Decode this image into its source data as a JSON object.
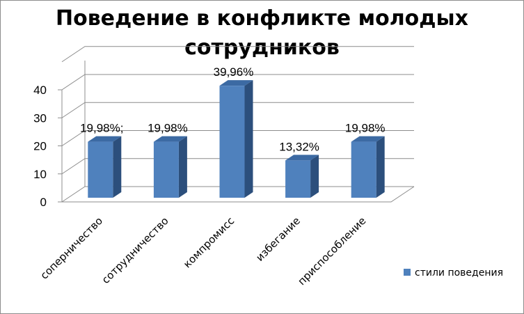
{
  "chart_data": {
    "type": "bar",
    "title": "Поведение в конфликте  молодых\nсотрудников",
    "categories": [
      "соперничество",
      "сотрудничество",
      "компромисс",
      "избегание",
      "приспособление"
    ],
    "series": [
      {
        "name": "стили поведения",
        "values": [
          19.98,
          19.98,
          39.96,
          13.32,
          19.98
        ],
        "data_labels": [
          "19,98%;",
          "19,98%",
          "39,96%",
          "13,32%",
          "19,98%"
        ]
      }
    ],
    "yticks": [
      "0",
      "10",
      "20",
      "30",
      "40"
    ],
    "ylim": [
      0,
      40
    ],
    "grid": true,
    "legend": "right",
    "three_d": true,
    "colors": {
      "bar_front": "#4f81bd",
      "bar_side": "#2c4f7c",
      "bar_top": "#3c6aa3",
      "grid": "#8c8c8c"
    }
  }
}
